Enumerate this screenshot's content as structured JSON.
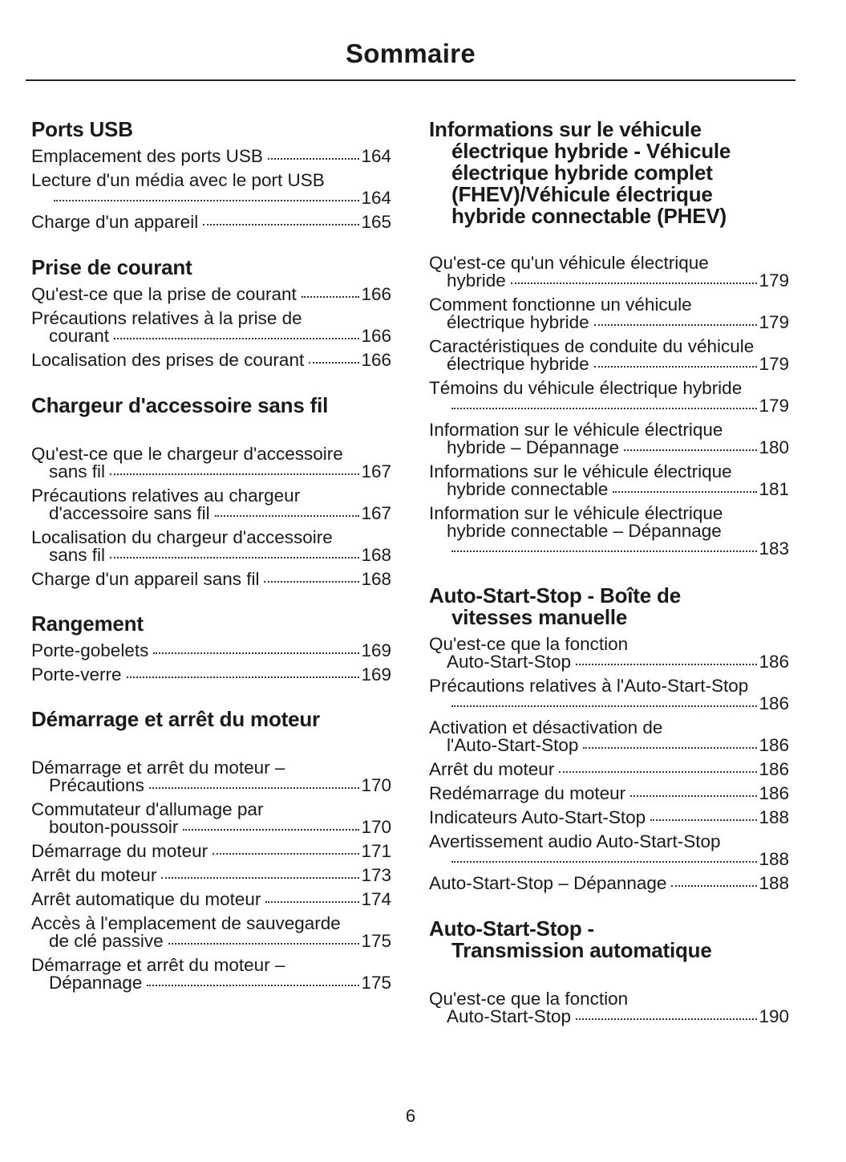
{
  "title": "Sommaire",
  "page_number": "6",
  "left": [
    {
      "heading": [
        "Ports USB"
      ],
      "entries": [
        {
          "lines": [
            "Emplacement des ports USB"
          ],
          "page": "164"
        },
        {
          "lines": [
            "Lecture d'un média avec le port USB",
            ""
          ],
          "page": "164"
        },
        {
          "lines": [
            "Charge d'un appareil"
          ],
          "page": "165"
        }
      ]
    },
    {
      "heading": [
        "Prise de courant"
      ],
      "entries": [
        {
          "lines": [
            "Qu'est-ce que la prise de courant"
          ],
          "page": "166"
        },
        {
          "lines": [
            "Précautions relatives à la prise de",
            "courant"
          ],
          "page": "166"
        },
        {
          "lines": [
            "Localisation des prises de courant"
          ],
          "page": "166"
        }
      ]
    },
    {
      "heading": [
        "Chargeur d'accessoire sans fil"
      ],
      "entries": [
        {
          "lines": [
            "Qu'est-ce que le chargeur d'accessoire",
            "sans fil"
          ],
          "page": "167"
        },
        {
          "lines": [
            "Précautions relatives au chargeur",
            "d'accessoire sans fil"
          ],
          "page": "167"
        },
        {
          "lines": [
            "Localisation du chargeur d'accessoire",
            "sans fil"
          ],
          "page": "168"
        },
        {
          "lines": [
            "Charge d'un appareil sans fil"
          ],
          "page": "168"
        }
      ]
    },
    {
      "heading": [
        "Rangement"
      ],
      "entries": [
        {
          "lines": [
            "Porte-gobelets"
          ],
          "page": "169"
        },
        {
          "lines": [
            "Porte-verre"
          ],
          "page": "169"
        }
      ]
    },
    {
      "heading": [
        "Démarrage et arrêt du moteur"
      ],
      "entries": [
        {
          "lines": [
            "Démarrage et arrêt du moteur –",
            "Précautions"
          ],
          "page": "170"
        },
        {
          "lines": [
            "Commutateur d'allumage par",
            "bouton-poussoir"
          ],
          "page": "170"
        },
        {
          "lines": [
            "Démarrage du moteur"
          ],
          "page": "171"
        },
        {
          "lines": [
            "Arrêt du moteur"
          ],
          "page": "173"
        },
        {
          "lines": [
            "Arrêt automatique du moteur"
          ],
          "page": "174"
        },
        {
          "lines": [
            "Accès à l'emplacement de sauvegarde",
            "de clé passive"
          ],
          "page": "175"
        },
        {
          "lines": [
            "Démarrage et arrêt du moteur –",
            "Dépannage"
          ],
          "page": "175"
        }
      ]
    }
  ],
  "right": [
    {
      "heading": [
        "Informations sur le véhicule",
        "électrique hybride - Véhicule",
        "électrique hybride complet",
        "(FHEV)/Véhicule électrique",
        "hybride connectable (PHEV)"
      ],
      "entries": [
        {
          "lines": [
            "Qu'est-ce qu'un véhicule électrique",
            "hybride"
          ],
          "page": "179"
        },
        {
          "lines": [
            "Comment fonctionne un véhicule",
            "électrique hybride"
          ],
          "page": "179"
        },
        {
          "lines": [
            "Caractéristiques de conduite du véhicule",
            "électrique hybride"
          ],
          "page": "179"
        },
        {
          "lines": [
            "Témoins du véhicule électrique hybride",
            ""
          ],
          "page": "179"
        },
        {
          "lines": [
            "Information sur le véhicule électrique",
            "hybride – Dépannage"
          ],
          "page": "180"
        },
        {
          "lines": [
            "Informations sur le véhicule électrique",
            "hybride connectable"
          ],
          "page": "181"
        },
        {
          "lines": [
            "Information sur le véhicule électrique",
            "hybride connectable – Dépannage",
            ""
          ],
          "page": "183"
        }
      ]
    },
    {
      "heading": [
        "Auto-Start-Stop - Boîte de",
        "vitesses manuelle"
      ],
      "entries": [
        {
          "lines": [
            "Qu'est-ce que la fonction",
            "Auto-Start-Stop"
          ],
          "page": "186"
        },
        {
          "lines": [
            "Précautions relatives à l'Auto-Start-Stop",
            ""
          ],
          "page": "186"
        },
        {
          "lines": [
            "Activation et désactivation de",
            "l'Auto-Start-Stop"
          ],
          "page": "186"
        },
        {
          "lines": [
            "Arrêt du moteur"
          ],
          "page": "186"
        },
        {
          "lines": [
            "Redémarrage du moteur"
          ],
          "page": "186"
        },
        {
          "lines": [
            "Indicateurs Auto-Start-Stop"
          ],
          "page": "188"
        },
        {
          "lines": [
            "Avertissement audio Auto-Start-Stop",
            ""
          ],
          "page": "188"
        },
        {
          "lines": [
            "Auto-Start-Stop – Dépannage"
          ],
          "page": "188"
        }
      ]
    },
    {
      "heading": [
        "Auto-Start-Stop -",
        "Transmission automatique"
      ],
      "entries": [
        {
          "lines": [
            "Qu'est-ce que la fonction",
            "Auto-Start-Stop"
          ],
          "page": "190"
        }
      ]
    }
  ]
}
